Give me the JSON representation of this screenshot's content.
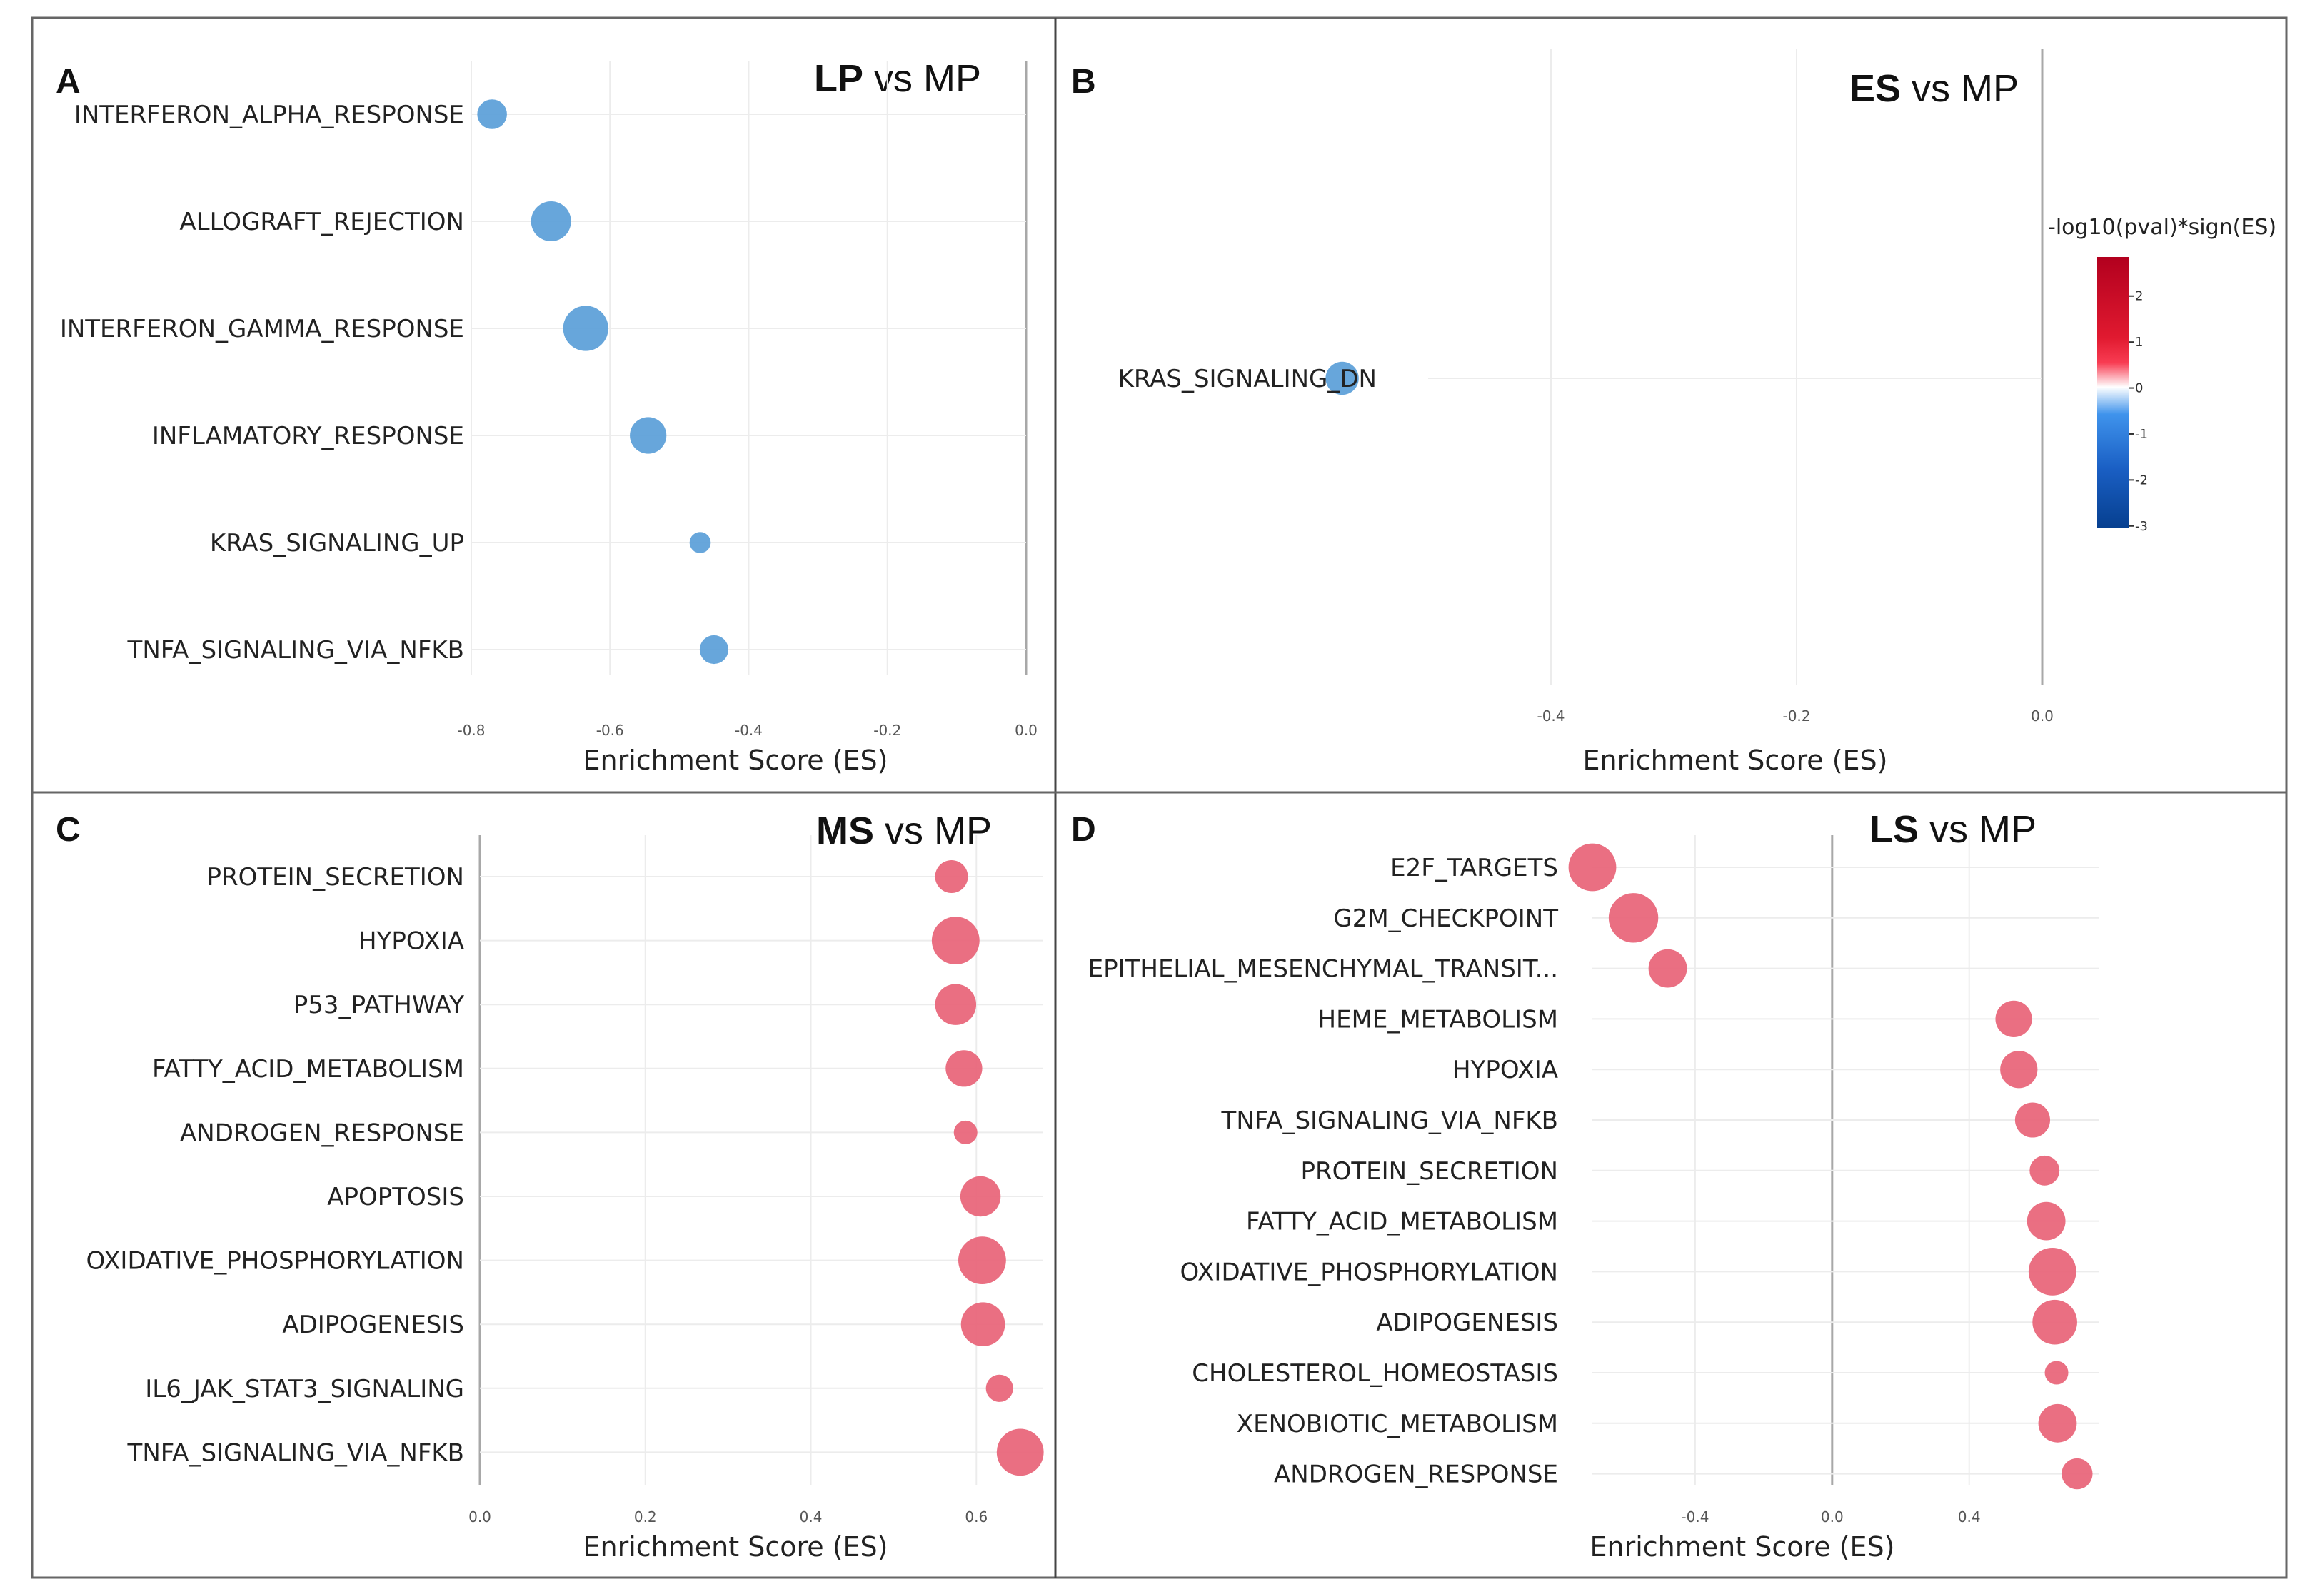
{
  "axis_title": "Enrichment Score (ES)",
  "legend": {
    "title": "-log10(pval)*sign(ES)",
    "ticks": [
      "2",
      "1",
      "0",
      "-1",
      "-2",
      "-3"
    ],
    "colors": {
      "high": "#b2001e",
      "mid_high": "#f4162e",
      "zero": "#ffffff",
      "mid_low": "#2a7fe0",
      "low": "#063f8f"
    }
  },
  "colors": {
    "negative": "#5b9fd8",
    "positive": "#e86478",
    "frame": "#555555"
  },
  "chart_data": [
    {
      "type": "scatter",
      "panel": "A",
      "title_bold": "LP",
      "title_rest": " vs MP",
      "xlabel": "Enrichment Score (ES)",
      "xlim": [
        -0.8,
        0.0
      ],
      "xticks": [
        -0.8,
        -0.6,
        -0.4,
        -0.2,
        0.0
      ],
      "xtick_labels": [
        "-0.8",
        "-0.6",
        "-0.4",
        "-0.2",
        "0.0"
      ],
      "categories": [
        "INTERFERON_ALPHA_RESPONSE",
        "ALLOGRAFT_REJECTION",
        "INTERFERON_GAMMA_RESPONSE",
        "INFLAMATORY_RESPONSE",
        "KRAS_SIGNALING_UP",
        "TNFA_SIGNALING_VIA_NFKB"
      ],
      "values": [
        -0.77,
        -0.685,
        -0.635,
        -0.545,
        -0.47,
        -0.45
      ],
      "sizes": [
        0.45,
        0.75,
        0.9,
        0.65,
        0.2,
        0.42
      ],
      "sign": "negative"
    },
    {
      "type": "scatter",
      "panel": "B",
      "title_bold": "ES",
      "title_rest": " vs MP",
      "xlabel": "Enrichment Score (ES)",
      "xlim": [
        -0.5,
        0.0
      ],
      "xticks": [
        -0.4,
        -0.2,
        0.0
      ],
      "xtick_labels": [
        "-0.4",
        "-0.2",
        "0.0"
      ],
      "categories": [
        "KRAS_SIGNALING_DN"
      ],
      "values": [
        -0.57
      ],
      "sizes": [
        0.6
      ],
      "sign": "negative"
    },
    {
      "type": "scatter",
      "panel": "C",
      "title_bold": "MS",
      "title_rest": " vs MP",
      "xlabel": "Enrichment Score (ES)",
      "xlim": [
        0.0,
        0.68
      ],
      "xticks": [
        0.0,
        0.2,
        0.4,
        0.6
      ],
      "xtick_labels": [
        "0.0",
        "0.2",
        "0.4",
        "0.6"
      ],
      "categories": [
        "PROTEIN_SECRETION",
        "HYPOXIA",
        "P53_PATHWAY",
        "FATTY_ACID_METABOLISM",
        "ANDROGEN_RESPONSE",
        "APOPTOSIS",
        "OXIDATIVE_PHOSPHORYLATION",
        "ADIPOGENESIS",
        "IL6_JAK_STAT3_SIGNALING",
        "TNFA_SIGNALING_VIA_NFKB"
      ],
      "values": [
        0.57,
        0.575,
        0.575,
        0.585,
        0.587,
        0.605,
        0.607,
        0.608,
        0.628,
        0.653
      ],
      "sizes": [
        0.5,
        0.9,
        0.72,
        0.6,
        0.25,
        0.7,
        0.9,
        0.8,
        0.35,
        0.88
      ],
      "sign": "positive"
    },
    {
      "type": "scatter",
      "panel": "D",
      "title_bold": "LS",
      "title_rest": " vs MP",
      "xlabel": "Enrichment Score (ES)",
      "xlim": [
        -0.7,
        0.78
      ],
      "xticks": [
        -0.4,
        0.0,
        0.4
      ],
      "xtick_labels": [
        "-0.4",
        "0.0",
        "0.4"
      ],
      "categories": [
        "E2F_TARGETS",
        "G2M_CHECKPOINT",
        "EPITHELIAL_MESENCHYMAL_TRANSIT...",
        "HEME_METABOLISM",
        "HYPOXIA",
        "TNFA_SIGNALING_VIA_NFKB",
        "PROTEIN_SECRETION",
        "FATTY_ACID_METABOLISM",
        "OXIDATIVE_PHOSPHORYLATION",
        "ADIPOGENESIS",
        "CHOLESTEROL_HOMEOSTASIS",
        "XENOBIOTIC_METABOLISM",
        "ANDROGEN_RESPONSE"
      ],
      "values": [
        -0.7,
        -0.58,
        -0.48,
        0.53,
        0.545,
        0.585,
        0.62,
        0.625,
        0.643,
        0.65,
        0.655,
        0.658,
        0.715
      ],
      "sizes": [
        0.9,
        0.95,
        0.65,
        0.6,
        0.62,
        0.56,
        0.42,
        0.65,
        0.9,
        0.82,
        0.25,
        0.65,
        0.45
      ],
      "sign": "positive"
    }
  ]
}
